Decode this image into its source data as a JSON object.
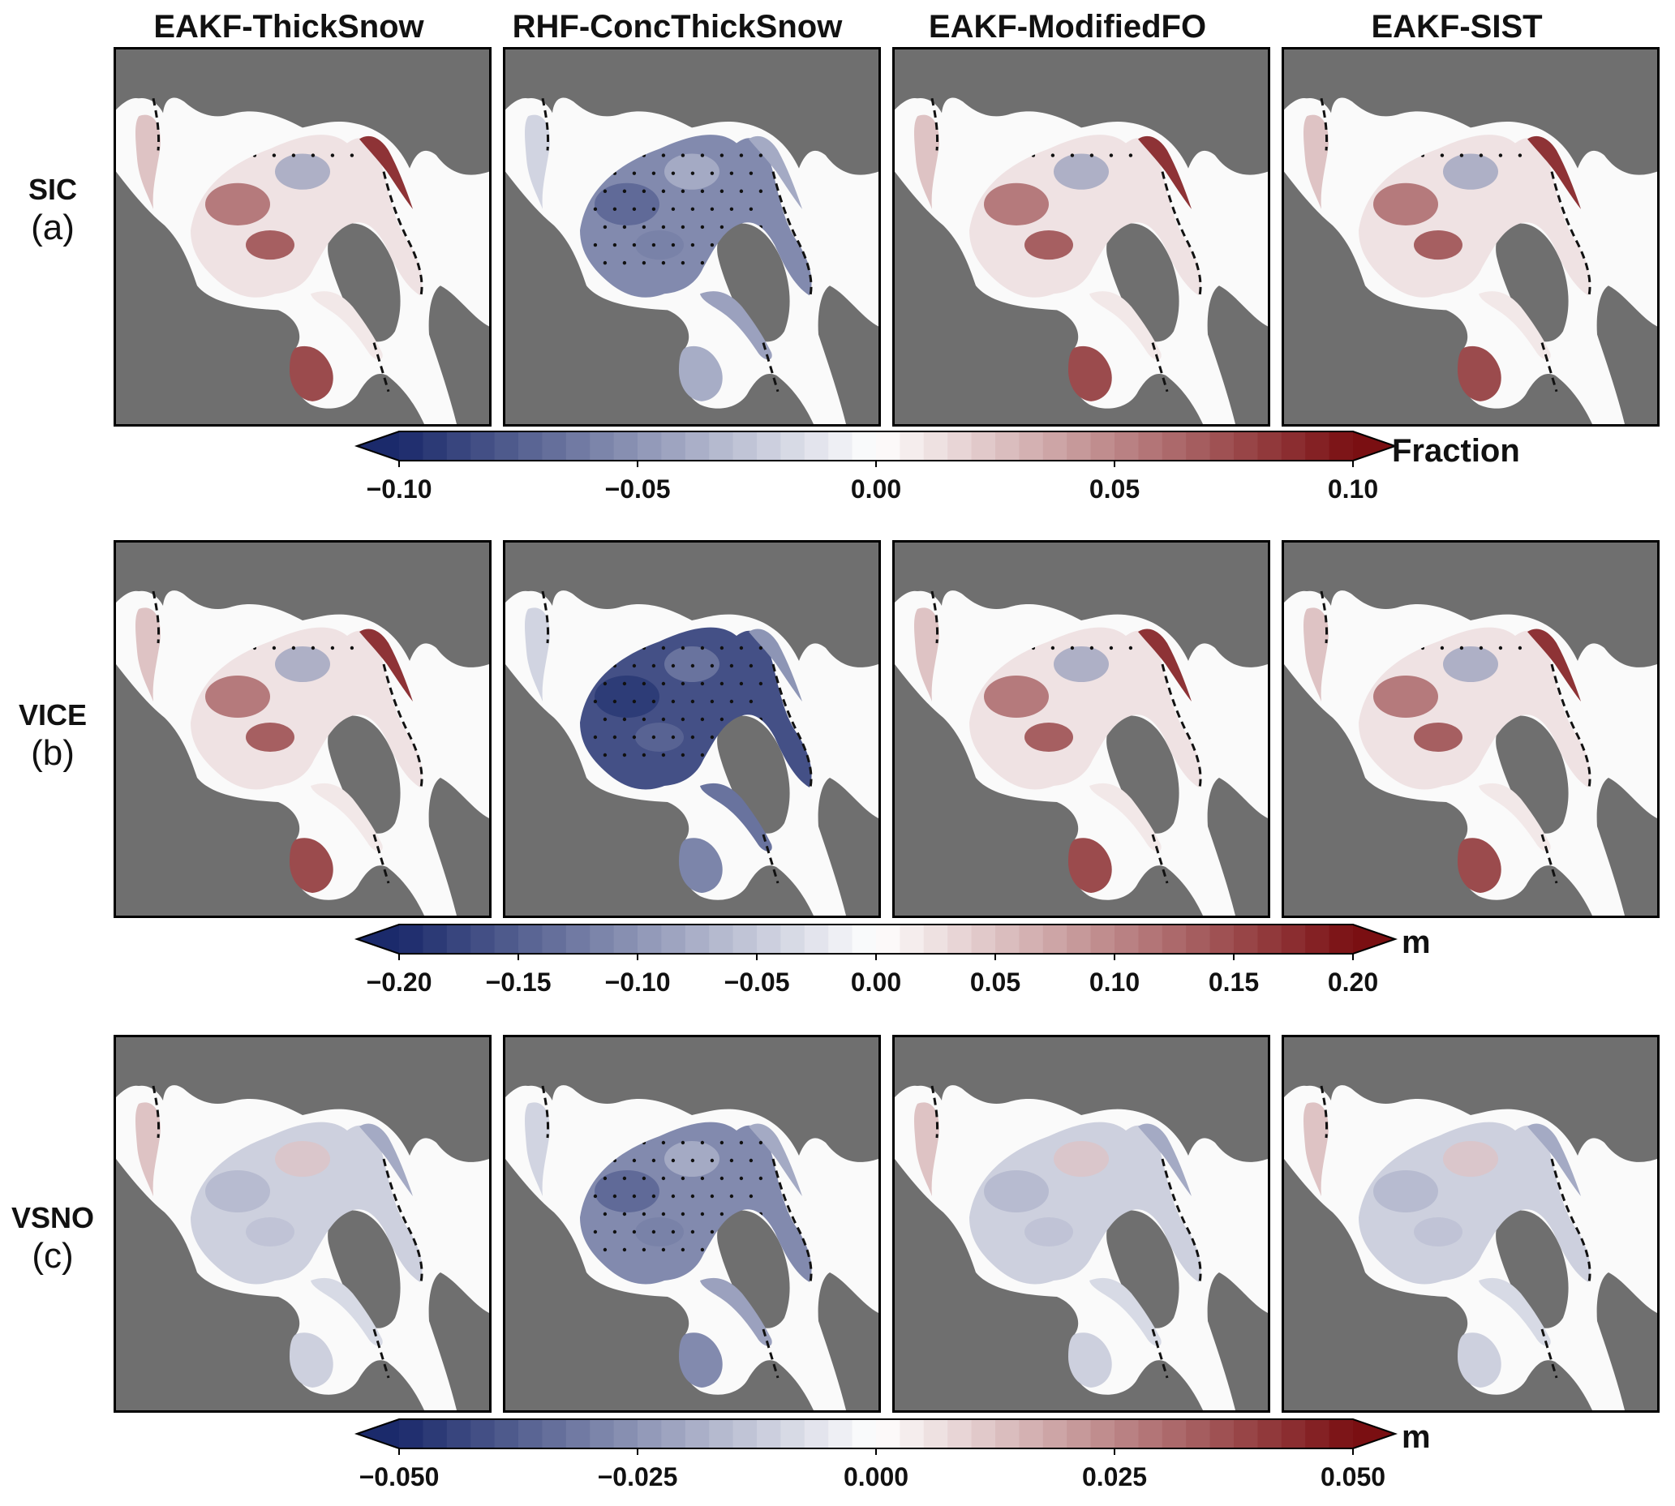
{
  "columns": [
    "EAKF-ThickSnow",
    "RHF-ConcThickSnow",
    "EAKF-ModifiedFO",
    "EAKF-SIST"
  ],
  "rows": [
    {
      "variable": "SIC",
      "tag": "(a)",
      "unit": "Fraction",
      "ticks": [
        "−0.10",
        "−0.05",
        "0.00",
        "0.05",
        "0.10"
      ],
      "range": [
        -0.1,
        0.1
      ]
    },
    {
      "variable": "VICE",
      "tag": "(b)",
      "unit": "m",
      "ticks": [
        "−0.20",
        "−0.15",
        "−0.10",
        "−0.05",
        "0.00",
        "0.05",
        "0.10",
        "0.15",
        "0.20"
      ],
      "range": [
        -0.2,
        0.2
      ]
    },
    {
      "variable": "VSNO",
      "tag": "(c)",
      "unit": "m",
      "ticks": [
        "−0.050",
        "−0.025",
        "0.000",
        "0.025",
        "0.050"
      ],
      "range": [
        -0.05,
        0.05
      ]
    }
  ],
  "chart_data": {
    "type": "heatmap",
    "panels": [
      {
        "row": "SIC",
        "column": "EAKF-ThickSnow",
        "tone": "mixed-positive"
      },
      {
        "row": "SIC",
        "column": "RHF-ConcThickSnow",
        "tone": "negative"
      },
      {
        "row": "SIC",
        "column": "EAKF-ModifiedFO",
        "tone": "mixed-positive"
      },
      {
        "row": "SIC",
        "column": "EAKF-SIST",
        "tone": "mixed-positive"
      },
      {
        "row": "VICE",
        "column": "EAKF-ThickSnow",
        "tone": "mixed-positive"
      },
      {
        "row": "VICE",
        "column": "RHF-ConcThickSnow",
        "tone": "strong-negative"
      },
      {
        "row": "VICE",
        "column": "EAKF-ModifiedFO",
        "tone": "mixed-positive"
      },
      {
        "row": "VICE",
        "column": "EAKF-SIST",
        "tone": "mixed-positive"
      },
      {
        "row": "VSNO",
        "column": "EAKF-ThickSnow",
        "tone": "weak-negative"
      },
      {
        "row": "VSNO",
        "column": "RHF-ConcThickSnow",
        "tone": "negative"
      },
      {
        "row": "VSNO",
        "column": "EAKF-ModifiedFO",
        "tone": "weak-negative"
      },
      {
        "row": "VSNO",
        "column": "EAKF-SIST",
        "tone": "weak-negative"
      }
    ],
    "colormap": {
      "negative_color": "#1b2a6b",
      "zero_color": "#ffffff",
      "positive_color": "#7a0f12",
      "land_color": "#6f6f6f"
    }
  }
}
